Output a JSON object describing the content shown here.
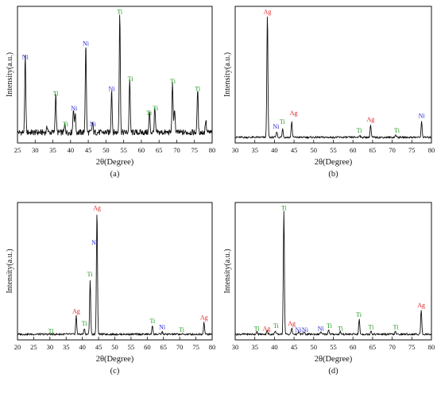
{
  "colors": {
    "ni": "#2a2ad8",
    "ti": "#1e9a1e",
    "ag": "#e02020",
    "trace": "#111111",
    "axis": "#111111"
  },
  "chart_data": [
    {
      "type": "line",
      "id": "a",
      "panel_label": "(a)",
      "xlabel": "2θ(Degree)",
      "ylabel": "Intensity(a.u.)",
      "xlim": [
        25,
        80
      ],
      "xticks": [
        25,
        30,
        35,
        40,
        45,
        50,
        55,
        60,
        65,
        70,
        75,
        80
      ],
      "baseline": 0.06,
      "peaks": [
        {
          "x": 27.2,
          "h": 0.62
        },
        {
          "x": 33.4,
          "h": 0.05
        },
        {
          "x": 35.8,
          "h": 0.32
        },
        {
          "x": 38.4,
          "h": 0.07
        },
        {
          "x": 40.8,
          "h": 0.2
        },
        {
          "x": 41.3,
          "h": 0.16
        },
        {
          "x": 44.3,
          "h": 0.73
        },
        {
          "x": 46.2,
          "h": 0.08
        },
        {
          "x": 51.6,
          "h": 0.36
        },
        {
          "x": 53.9,
          "h": 1.0
        },
        {
          "x": 56.7,
          "h": 0.44
        },
        {
          "x": 62.3,
          "h": 0.16
        },
        {
          "x": 63.8,
          "h": 0.2
        },
        {
          "x": 68.8,
          "h": 0.42
        },
        {
          "x": 69.4,
          "h": 0.2
        },
        {
          "x": 75.9,
          "h": 0.36
        },
        {
          "x": 78.2,
          "h": 0.1
        }
      ],
      "labels": [
        {
          "text": "Ni",
          "phase": "ni",
          "x": 27.2,
          "y": 0.66
        },
        {
          "text": "Ti",
          "phase": "ti",
          "x": 35.8,
          "y": 0.36
        },
        {
          "text": "Ti",
          "phase": "ti",
          "x": 38.6,
          "y": 0.11
        },
        {
          "text": "Ni",
          "phase": "ni",
          "x": 41.0,
          "y": 0.24
        },
        {
          "text": "Ni",
          "phase": "ni",
          "x": 44.3,
          "y": 0.77
        },
        {
          "text": "Ni",
          "phase": "ni",
          "x": 46.3,
          "y": 0.11
        },
        {
          "text": "Ni",
          "phase": "ni",
          "x": 51.6,
          "y": 0.4
        },
        {
          "text": "Ti",
          "phase": "ti",
          "x": 53.9,
          "y": 1.03
        },
        {
          "text": "Ti",
          "phase": "ti",
          "x": 56.9,
          "y": 0.48
        },
        {
          "text": "Ti",
          "phase": "ti",
          "x": 62.2,
          "y": 0.2
        },
        {
          "text": "Ti",
          "phase": "ti",
          "x": 64.0,
          "y": 0.24
        },
        {
          "text": "Ti",
          "phase": "ti",
          "x": 68.9,
          "y": 0.46
        },
        {
          "text": "Ti",
          "phase": "ti",
          "x": 75.9,
          "y": 0.4
        }
      ]
    },
    {
      "type": "line",
      "id": "b",
      "panel_label": "(b)",
      "xlabel": "2θ(Degree)",
      "ylabel": "Intensity(a.u.)",
      "xlim": [
        30,
        80
      ],
      "xticks": [
        30,
        35,
        40,
        45,
        50,
        55,
        60,
        65,
        70,
        75,
        80
      ],
      "baseline": 0.02,
      "peaks": [
        {
          "x": 38.2,
          "h": 1.0
        },
        {
          "x": 40.6,
          "h": 0.05
        },
        {
          "x": 42.1,
          "h": 0.07
        },
        {
          "x": 44.4,
          "h": 0.13
        },
        {
          "x": 61.7,
          "h": 0.02
        },
        {
          "x": 64.5,
          "h": 0.1
        },
        {
          "x": 70.9,
          "h": 0.02
        },
        {
          "x": 77.5,
          "h": 0.13
        }
      ],
      "labels": [
        {
          "text": "Ag",
          "phase": "ag",
          "x": 38.2,
          "y": 1.03
        },
        {
          "text": "Ni",
          "phase": "ni",
          "x": 40.4,
          "y": 0.09
        },
        {
          "text": "Ti",
          "phase": "ti",
          "x": 42.0,
          "y": 0.13
        },
        {
          "text": "Ag",
          "phase": "ag",
          "x": 44.9,
          "y": 0.2
        },
        {
          "text": "Ti",
          "phase": "ti",
          "x": 61.6,
          "y": 0.06
        },
        {
          "text": "Ag",
          "phase": "ag",
          "x": 64.5,
          "y": 0.15
        },
        {
          "text": "Ti",
          "phase": "ti",
          "x": 71.2,
          "y": 0.06
        },
        {
          "text": "Ni",
          "phase": "ni",
          "x": 77.5,
          "y": 0.18
        }
      ]
    },
    {
      "type": "line",
      "id": "c",
      "panel_label": "(c)",
      "xlabel": "2θ(Degree)",
      "ylabel": "Intensity(a.u.)",
      "xlim": [
        20,
        80
      ],
      "xticks": [
        20,
        25,
        30,
        35,
        40,
        45,
        50,
        55,
        60,
        65,
        70,
        75,
        80
      ],
      "baseline": 0.02,
      "peaks": [
        {
          "x": 38.1,
          "h": 0.15
        },
        {
          "x": 40.6,
          "h": 0.05
        },
        {
          "x": 42.4,
          "h": 0.44
        },
        {
          "x": 44.5,
          "h": 1.0
        },
        {
          "x": 61.6,
          "h": 0.07
        },
        {
          "x": 64.6,
          "h": 0.02
        },
        {
          "x": 77.5,
          "h": 0.1
        }
      ],
      "labels": [
        {
          "text": "Ti",
          "phase": "ti",
          "x": 30.3,
          "y": 0.03
        },
        {
          "text": "Ag",
          "phase": "ag",
          "x": 38.1,
          "y": 0.19
        },
        {
          "text": "Ti",
          "phase": "ti",
          "x": 40.6,
          "y": 0.09
        },
        {
          "text": "Ti",
          "phase": "ti",
          "x": 42.3,
          "y": 0.49
        },
        {
          "text": "Ni",
          "phase": "ni",
          "x": 43.8,
          "y": 0.75
        },
        {
          "text": "Ag",
          "phase": "ag",
          "x": 44.5,
          "y": 1.03
        },
        {
          "text": "Ti",
          "phase": "ti",
          "x": 61.6,
          "y": 0.11
        },
        {
          "text": "Ni",
          "phase": "ni",
          "x": 64.6,
          "y": 0.06
        },
        {
          "text": "Ti",
          "phase": "ti",
          "x": 70.6,
          "y": 0.04
        },
        {
          "text": "Ag",
          "phase": "ag",
          "x": 77.5,
          "y": 0.14
        }
      ]
    },
    {
      "type": "line",
      "id": "d",
      "panel_label": "(d)",
      "xlabel": "2θ(Degree)",
      "ylabel": "Intensity(a.u.)",
      "xlim": [
        30,
        80
      ],
      "xticks": [
        30,
        35,
        40,
        45,
        50,
        55,
        60,
        65,
        70,
        75,
        80
      ],
      "baseline": 0.02,
      "peaks": [
        {
          "x": 35.5,
          "h": 0.02
        },
        {
          "x": 38.1,
          "h": 0.03
        },
        {
          "x": 40.2,
          "h": 0.03
        },
        {
          "x": 42.4,
          "h": 1.0
        },
        {
          "x": 44.4,
          "h": 0.05
        },
        {
          "x": 46.2,
          "h": 0.02
        },
        {
          "x": 47.5,
          "h": 0.02
        },
        {
          "x": 51.8,
          "h": 0.02
        },
        {
          "x": 53.8,
          "h": 0.04
        },
        {
          "x": 56.8,
          "h": 0.02
        },
        {
          "x": 61.6,
          "h": 0.12
        },
        {
          "x": 64.6,
          "h": 0.03
        },
        {
          "x": 70.8,
          "h": 0.02
        },
        {
          "x": 77.4,
          "h": 0.2
        }
      ],
      "labels": [
        {
          "text": "Ti",
          "phase": "ti",
          "x": 35.5,
          "y": 0.05
        },
        {
          "text": "Ag",
          "phase": "ag",
          "x": 38.0,
          "y": 0.05
        },
        {
          "text": "Ti",
          "phase": "ti",
          "x": 40.4,
          "y": 0.07
        },
        {
          "text": "Ti",
          "phase": "ti",
          "x": 42.4,
          "y": 1.03
        },
        {
          "text": "Ag",
          "phase": "ag",
          "x": 44.4,
          "y": 0.09
        },
        {
          "text": "Ni",
          "phase": "ni",
          "x": 46.1,
          "y": 0.04
        },
        {
          "text": "Ni",
          "phase": "ni",
          "x": 47.8,
          "y": 0.04
        },
        {
          "text": "Ni",
          "phase": "ni",
          "x": 51.8,
          "y": 0.05
        },
        {
          "text": "Ti",
          "phase": "ti",
          "x": 54.0,
          "y": 0.07
        },
        {
          "text": "Ti",
          "phase": "ti",
          "x": 56.8,
          "y": 0.05
        },
        {
          "text": "Ti",
          "phase": "ti",
          "x": 61.5,
          "y": 0.16
        },
        {
          "text": "Ti",
          "phase": "ti",
          "x": 64.6,
          "y": 0.06
        },
        {
          "text": "Ti",
          "phase": "ti",
          "x": 70.9,
          "y": 0.06
        },
        {
          "text": "Ag",
          "phase": "ag",
          "x": 77.4,
          "y": 0.24
        }
      ]
    }
  ]
}
